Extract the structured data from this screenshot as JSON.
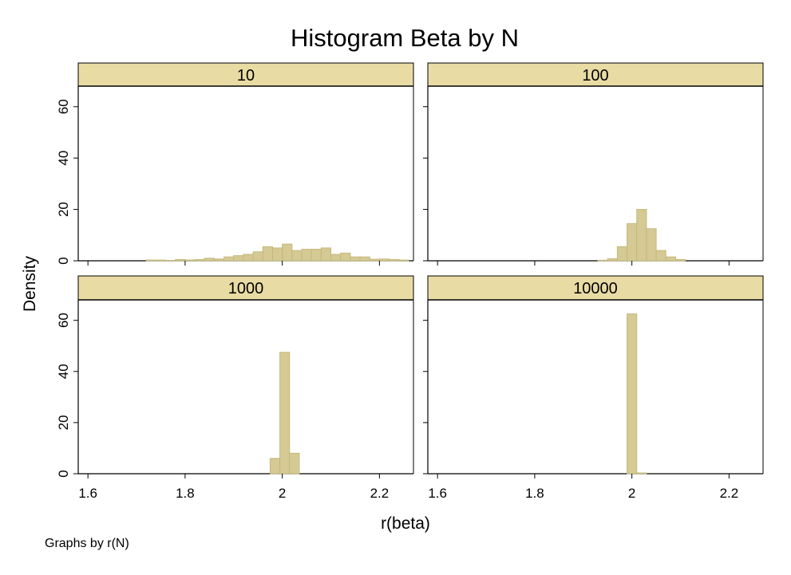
{
  "chart_data": {
    "type": "bar",
    "title": "Histogram Beta by N",
    "xlabel": "r(beta)",
    "ylabel": "Density",
    "note": "Graphs by r(N)",
    "xlim": [
      1.58,
      2.27
    ],
    "ylim": [
      0,
      68
    ],
    "x_ticks": [
      {
        "value": 1.6,
        "label": "1.6"
      },
      {
        "value": 1.8,
        "label": "1.8"
      },
      {
        "value": 2.0,
        "label": "2"
      },
      {
        "value": 2.2,
        "label": "2.2"
      }
    ],
    "y_ticks": [
      {
        "value": 0,
        "label": "0"
      },
      {
        "value": 20,
        "label": "20"
      },
      {
        "value": 40,
        "label": "40"
      },
      {
        "value": 60,
        "label": "60"
      }
    ],
    "bin_width": 0.02,
    "colors": {
      "bar_fill": "#d5ca94",
      "bar_stroke": "#c4b87c",
      "strip_fill": "#e8dca4"
    },
    "panels": [
      {
        "label": "10",
        "bins": [
          {
            "x0": 1.72,
            "density": 0.3
          },
          {
            "x0": 1.74,
            "density": 0.3
          },
          {
            "x0": 1.76,
            "density": 0.1
          },
          {
            "x0": 1.78,
            "density": 0.5
          },
          {
            "x0": 1.8,
            "density": 0.3
          },
          {
            "x0": 1.82,
            "density": 0.5
          },
          {
            "x0": 1.84,
            "density": 1.0
          },
          {
            "x0": 1.86,
            "density": 0.7
          },
          {
            "x0": 1.88,
            "density": 1.5
          },
          {
            "x0": 1.9,
            "density": 2.0
          },
          {
            "x0": 1.92,
            "density": 2.5
          },
          {
            "x0": 1.94,
            "density": 3.5
          },
          {
            "x0": 1.96,
            "density": 5.5
          },
          {
            "x0": 1.98,
            "density": 5.0
          },
          {
            "x0": 2.0,
            "density": 6.5
          },
          {
            "x0": 2.02,
            "density": 4.0
          },
          {
            "x0": 2.04,
            "density": 4.5
          },
          {
            "x0": 2.06,
            "density": 4.5
          },
          {
            "x0": 2.08,
            "density": 5.0
          },
          {
            "x0": 2.1,
            "density": 2.5
          },
          {
            "x0": 2.12,
            "density": 3.0
          },
          {
            "x0": 2.14,
            "density": 1.5
          },
          {
            "x0": 2.16,
            "density": 1.5
          },
          {
            "x0": 2.18,
            "density": 0.6
          },
          {
            "x0": 2.2,
            "density": 0.7
          },
          {
            "x0": 2.22,
            "density": 0.5
          },
          {
            "x0": 2.24,
            "density": 0.3
          },
          {
            "x0": 2.28,
            "density": 0.3
          }
        ]
      },
      {
        "label": "100",
        "bins": [
          {
            "x0": 1.93,
            "density": 0.2
          },
          {
            "x0": 1.95,
            "density": 0.8
          },
          {
            "x0": 1.97,
            "density": 5.5
          },
          {
            "x0": 1.99,
            "density": 14.5
          },
          {
            "x0": 2.01,
            "density": 20.0
          },
          {
            "x0": 2.03,
            "density": 12.5
          },
          {
            "x0": 2.05,
            "density": 4.0
          },
          {
            "x0": 2.07,
            "density": 1.5
          },
          {
            "x0": 2.09,
            "density": 0.5
          }
        ]
      },
      {
        "label": "1000",
        "bins": [
          {
            "x0": 1.975,
            "density": 6.0
          },
          {
            "x0": 1.995,
            "density": 47.5
          },
          {
            "x0": 2.015,
            "density": 8.0
          }
        ]
      },
      {
        "label": "10000",
        "bins": [
          {
            "x0": 1.99,
            "density": 62.5
          },
          {
            "x0": 2.01,
            "density": 0.3
          }
        ]
      }
    ]
  }
}
